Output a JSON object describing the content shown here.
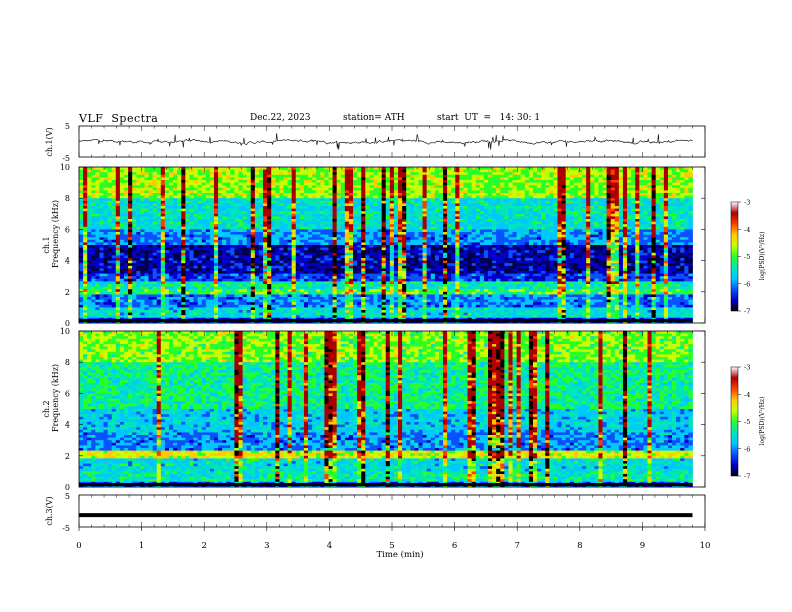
{
  "header": {
    "title": "VLF  Spectra",
    "date": "Dec.22, 2023",
    "station": "station= ATH",
    "start": "start  UT  =   14: 30: 1"
  },
  "chart_data": [
    {
      "type": "line",
      "panel": "ch1-waveform",
      "ylabel": "ch.1(V)",
      "ylim": [
        -5,
        5
      ],
      "yticks": [
        "5",
        "-5"
      ],
      "xlim": [
        0,
        10
      ],
      "series_color": "#000000",
      "x_end": 9.8
    },
    {
      "type": "heatmap",
      "panel": "ch1-spectrogram",
      "ylabel_top": "ch.1",
      "ylabel": "Frequency  (kHz)",
      "ylim": [
        0,
        10
      ],
      "yticks": [
        "0",
        "2",
        "4",
        "6",
        "8",
        "10"
      ],
      "xlim": [
        0,
        10
      ],
      "x_end": 9.8,
      "colorbar": {
        "label": "log(PSD)(V²/Hz)",
        "range": [
          -7,
          -3
        ],
        "ticks": [
          "-3",
          "-4",
          "-5",
          "-6",
          "-7"
        ]
      }
    },
    {
      "type": "heatmap",
      "panel": "ch2-spectrogram",
      "ylabel_top": "ch.2",
      "ylabel": "Frequency  (kHz)",
      "ylim": [
        0,
        10
      ],
      "yticks": [
        "0",
        "2",
        "4",
        "6",
        "8",
        "10"
      ],
      "xlim": [
        0,
        10
      ],
      "x_end": 9.8,
      "colorbar": {
        "label": "log(PSD)(V²/Hz)",
        "range": [
          -7,
          -3
        ],
        "ticks": [
          "-3",
          "-4",
          "-5",
          "-6",
          "-7"
        ]
      }
    },
    {
      "type": "line",
      "panel": "ch3-waveform",
      "ylabel": "ch.3(V)",
      "ylim": [
        -5,
        5
      ],
      "yticks": [
        "5",
        "-5"
      ],
      "xlim": [
        0,
        10
      ],
      "xticks": [
        "0",
        "1",
        "2",
        "3",
        "4",
        "5",
        "6",
        "7",
        "8",
        "9",
        "10"
      ],
      "xlabel": "Time  (min)",
      "value": -1.3,
      "x_end": 9.8
    }
  ],
  "colormap": [
    "#00004a",
    "#0000c8",
    "#0a50ff",
    "#00c8ff",
    "#00e6b4",
    "#28ff28",
    "#c8ff00",
    "#ffc800",
    "#ff3c00",
    "#aa0000",
    "#ffffff"
  ]
}
